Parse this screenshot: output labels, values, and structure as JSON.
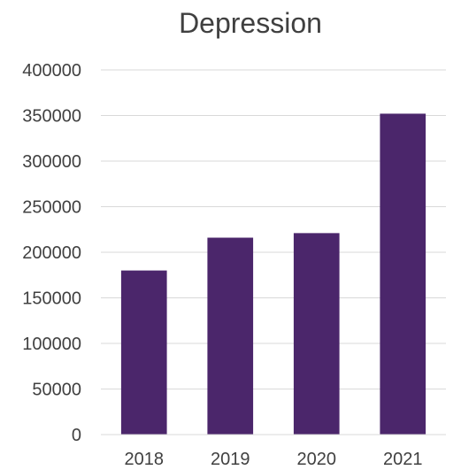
{
  "chart_data": {
    "type": "bar",
    "title": "Depression",
    "xlabel": "",
    "ylabel": "",
    "categories": [
      "2018",
      "2019",
      "2020",
      "2021"
    ],
    "values": [
      180000,
      216000,
      221000,
      352000
    ],
    "ylim": [
      0,
      400000
    ],
    "yticks": [
      "0",
      "50000",
      "100000",
      "150000",
      "200000",
      "250000",
      "300000",
      "350000",
      "400000"
    ],
    "grid": true,
    "legend": "none",
    "bar_color": "#4b266b"
  }
}
